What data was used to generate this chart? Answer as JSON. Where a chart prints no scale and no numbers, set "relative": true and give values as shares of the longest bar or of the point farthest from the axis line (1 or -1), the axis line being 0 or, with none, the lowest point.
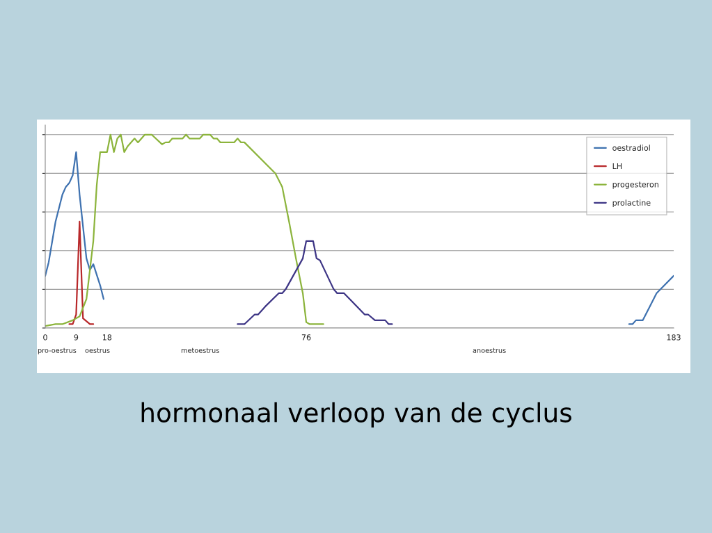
{
  "chart_data": {
    "type": "line",
    "title": "hormonaal verloop van de cyclus",
    "relative": true,
    "xlim": [
      0,
      183
    ],
    "xticks": [
      0,
      9,
      18,
      76,
      183
    ],
    "series": [
      {
        "name": "oestradiol",
        "color": "#3f72b0",
        "x": [
          0,
          1,
          3,
          5,
          6,
          7,
          8,
          9,
          10,
          12,
          13,
          14,
          16,
          17,
          null,
          170,
          171,
          172,
          174,
          176,
          178,
          183
        ],
        "values": [
          0.27,
          0.34,
          0.55,
          0.69,
          0.73,
          0.75,
          0.79,
          0.91,
          0.69,
          0.36,
          0.3,
          0.33,
          0.22,
          0.15,
          null,
          0.02,
          0.02,
          0.04,
          0.04,
          0.11,
          0.18,
          0.27
        ]
      },
      {
        "name": "LH",
        "color": "#b8282a",
        "x": [
          7,
          8,
          9,
          10,
          11,
          13,
          14
        ],
        "values": [
          0.02,
          0.02,
          0.07,
          0.55,
          0.05,
          0.02,
          0.02
        ]
      },
      {
        "name": "progesteron",
        "color": "#8cb43c",
        "x": [
          0,
          3,
          5,
          8,
          10,
          12,
          14,
          15,
          16,
          18,
          19,
          20,
          21,
          22,
          23,
          24,
          26,
          27,
          29,
          31,
          34,
          35,
          36,
          37,
          40,
          41,
          42,
          45,
          46,
          48,
          49,
          50,
          51,
          55,
          56,
          57,
          58,
          67,
          69,
          71,
          73,
          75,
          76,
          77,
          81
        ],
        "values": [
          0.01,
          0.02,
          0.02,
          0.04,
          0.06,
          0.15,
          0.45,
          0.74,
          0.91,
          0.91,
          1.0,
          0.91,
          0.98,
          1.0,
          0.91,
          0.94,
          0.98,
          0.96,
          1.0,
          1.0,
          0.95,
          0.96,
          0.96,
          0.98,
          0.98,
          1.0,
          0.98,
          0.98,
          1.0,
          1.0,
          0.98,
          0.98,
          0.96,
          0.96,
          0.98,
          0.96,
          0.96,
          0.8,
          0.73,
          0.55,
          0.36,
          0.18,
          0.03,
          0.02,
          0.02
        ]
      },
      {
        "name": "prolactine",
        "color": "#3d3585",
        "x": [
          56,
          58,
          61,
          62,
          64,
          68,
          69,
          70,
          75,
          76,
          78,
          79,
          80,
          84,
          85,
          87,
          93,
          94,
          96,
          99,
          100,
          101
        ],
        "values": [
          0.02,
          0.02,
          0.07,
          0.07,
          0.11,
          0.18,
          0.18,
          0.2,
          0.36,
          0.45,
          0.45,
          0.36,
          0.35,
          0.2,
          0.18,
          0.18,
          0.07,
          0.07,
          0.04,
          0.04,
          0.02,
          0.02
        ]
      }
    ],
    "annotations": [
      "pro-oestrus",
      "oestrus",
      "metoestrus",
      "anoestrus"
    ],
    "grid": "y",
    "legend": "top right",
    "marker": "none",
    "line_style": "solid"
  }
}
